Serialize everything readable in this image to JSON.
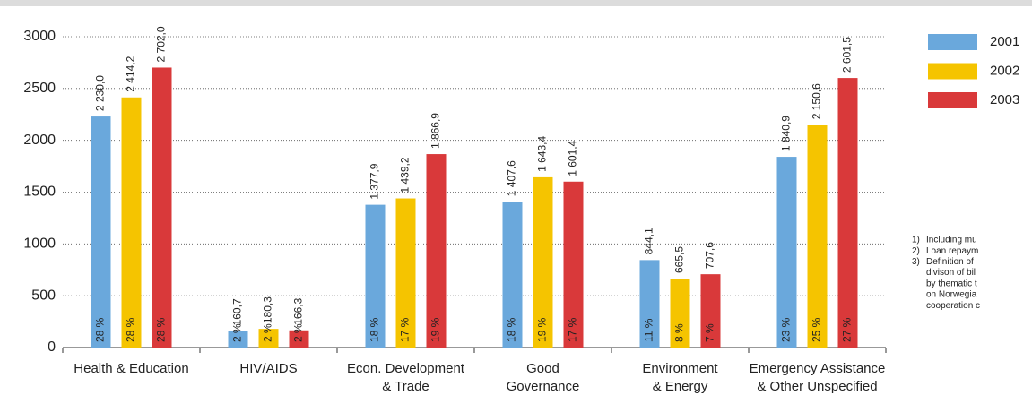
{
  "chart_data": {
    "type": "bar",
    "categories": [
      [
        "Health & Education"
      ],
      [
        "HIV/AIDS"
      ],
      [
        "Econ. Development",
        "& Trade"
      ],
      [
        "Good",
        "Governance"
      ],
      [
        "Environment",
        "& Energy"
      ],
      [
        "Emergency Assistance",
        "& Other Unspecified"
      ]
    ],
    "series": [
      {
        "name": "2001",
        "color": "#6aa8dc",
        "values": [
          2230.0,
          160.7,
          1377.9,
          1407.6,
          844.1,
          1840.9
        ],
        "value_labels": [
          "2 230,0",
          "160,7",
          "1 377,9",
          "1 407,6",
          "844,1",
          "1 840,9"
        ],
        "share_labels": [
          "28 %",
          "2 %",
          "18 %",
          "18 %",
          "11 %",
          "23 %"
        ]
      },
      {
        "name": "2002",
        "color": "#f5c400",
        "values": [
          2414.2,
          180.3,
          1439.2,
          1643.4,
          665.5,
          2150.6
        ],
        "value_labels": [
          "2 414,2",
          "180,3",
          "1 439,2",
          "1 643,4",
          "665,5",
          "2 150,6"
        ],
        "share_labels": [
          "28 %",
          "2 %",
          "17 %",
          "19 %",
          "8 %",
          "25 %"
        ]
      },
      {
        "name": "2003",
        "color": "#d9393a",
        "values": [
          2702.0,
          166.3,
          1866.9,
          1601.4,
          707.6,
          2601.5
        ],
        "value_labels": [
          "2 702,0",
          "166,3",
          "1 866,9",
          "1 601,4",
          "707,6",
          "2 601,5"
        ],
        "share_labels": [
          "28 %",
          "2 %",
          "19 %",
          "17 %",
          "7 %",
          "27 %"
        ]
      }
    ],
    "ylim": [
      0,
      3000
    ],
    "yticks": [
      0,
      500,
      1000,
      1500,
      2000,
      2500,
      3000
    ],
    "grid": true,
    "notes": [
      {
        "num": "1)",
        "text": "Including mu"
      },
      {
        "num": "2)",
        "text": "Loan repaym"
      },
      {
        "num": "3)",
        "text": "Definition of"
      },
      {
        "text": "divison of bil"
      },
      {
        "text": "by thematic t"
      },
      {
        "text": "on Norwegia"
      },
      {
        "text": "cooperation c"
      }
    ]
  }
}
